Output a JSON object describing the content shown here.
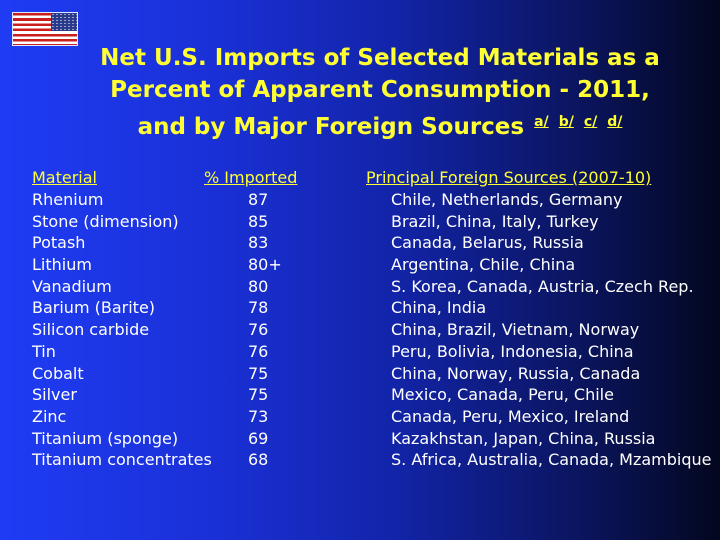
{
  "title": {
    "line1": "Net U.S. Imports of Selected Materials as a",
    "line2": "Percent of Apparent Consumption - 2011,",
    "line3": "and by Major Foreign Sources",
    "footnotes": [
      "a/",
      "b/",
      "c/",
      "d/"
    ]
  },
  "headers": {
    "material": "Material",
    "pct": "% Imported",
    "sources": "Principal Foreign Sources (2007-10)"
  },
  "rows": [
    {
      "material": "Rhenium",
      "pct": "87",
      "sources": "Chile, Netherlands, Germany"
    },
    {
      "material": "Stone (dimension)",
      "pct": "85",
      "sources": "Brazil, China, Italy, Turkey"
    },
    {
      "material": "Potash",
      "pct": "83",
      "sources": "Canada, Belarus, Russia"
    },
    {
      "material": "Lithium",
      "pct": "80+",
      "sources": "Argentina, Chile, China"
    },
    {
      "material": "Vanadium",
      "pct": "80",
      "sources": "S. Korea, Canada, Austria, Czech Rep."
    },
    {
      "material": "Barium (Barite)",
      "pct": "78",
      "sources": "China, India"
    },
    {
      "material": "Silicon carbide",
      "pct": "76",
      "sources": "China, Brazil, Vietnam, Norway"
    },
    {
      "material": "Tin",
      "pct": "76",
      "sources": "Peru, Bolivia, Indonesia, China"
    },
    {
      "material": "Cobalt",
      "pct": "75",
      "sources": "China, Norway, Russia, Canada"
    },
    {
      "material": "Silver",
      "pct": "75",
      "sources": "Mexico, Canada, Peru, Chile"
    },
    {
      "material": "Zinc",
      "pct": "73",
      "sources": "Canada, Peru, Mexico, Ireland"
    },
    {
      "material": "Titanium (sponge)",
      "pct": "69",
      "sources": "Kazakhstan, Japan, China, Russia"
    },
    {
      "material": "Titanium concentrates",
      "pct": "68",
      "sources": "S. Africa, Australia, Canada, Mzambique"
    }
  ],
  "colors": {
    "title": "#ffff33",
    "text": "#ffffff",
    "background": "#1a30d6"
  },
  "icons": {
    "flag": "us-flag-icon"
  }
}
